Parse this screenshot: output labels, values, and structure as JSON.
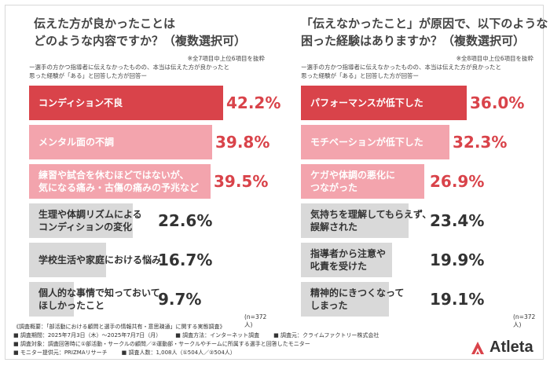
{
  "left": {
    "title_line1": "伝えた方が良かったことは",
    "title_line2": "どのような内容ですか？（複数選択可）",
    "note": "※全7項目中上位6項目を抜粋",
    "sub_line1": "ー選手の方かつ指導者に伝えなかったものの、本当は伝えた方が良かったと",
    "sub_line2": "思った経験が「ある」と回答した方が回答ー",
    "n_note": "(n=372人)",
    "highlight_color": "#d9434a",
    "accent_color": "#d9434a",
    "pale_color": "#f3a4ad",
    "gray_color": "#d9d9d9",
    "chart_data": {
      "type": "bar",
      "orientation": "horizontal",
      "unit": "%",
      "xlim": [
        0,
        100
      ],
      "categories": [
        [
          "コンディション不良"
        ],
        [
          "メンタル面の不調"
        ],
        [
          "練習や試合を休むほどではないが、",
          "気になる痛み・古傷の痛みの予兆など"
        ],
        [
          "生理や体調リズムによる",
          "コンディションの変化"
        ],
        [
          "学校生活や家庭における悩み"
        ],
        [
          "個人的な事情で知っておいて",
          "ほしかったこと"
        ]
      ],
      "values": [
        42.2,
        39.8,
        39.5,
        22.6,
        16.7,
        9.7
      ],
      "labels": [
        "42.2%",
        "39.8%",
        "39.5%",
        "22.6%",
        "16.7%",
        "9.7%"
      ]
    }
  },
  "right": {
    "title_line1": "「伝えなかったこと」が原因で、以下のような",
    "title_line2": "困った経験はありますか？（複数選択可）",
    "note": "※全8項目中上位6項目を抜粋",
    "sub_line1": "ー選手の方かつ指導者に伝えなかったものの、本当は伝えた方が良かったと",
    "sub_line2": "思った経験が「ある」と回答した方が回答ー",
    "n_note": "(n=372人)",
    "chart_data": {
      "type": "bar",
      "orientation": "horizontal",
      "unit": "%",
      "xlim": [
        0,
        100
      ],
      "categories": [
        [
          "パフォーマンスが低下した"
        ],
        [
          "モチベーションが低下した"
        ],
        [
          "ケガや体調の悪化に",
          "つながった"
        ],
        [
          "気持ちを理解してもらえず、",
          "誤解された"
        ],
        [
          "指導者から注意や",
          "叱責を受けた"
        ],
        [
          "精神的にきつくなって",
          "しまった"
        ]
      ],
      "values": [
        36.0,
        32.3,
        26.9,
        23.4,
        19.9,
        19.1
      ],
      "labels": [
        "36.0%",
        "32.3%",
        "26.9%",
        "23.4%",
        "19.9%",
        "19.1%"
      ]
    }
  },
  "footer": {
    "line1": "《調査概要：「部活動における顧問と選手の情報共有・意思疎通」に関する実態調査》",
    "line2a": "■ 調査期間：2025年7月3日（木）〜2025年7月7日（月）",
    "line2b": "■ 調査方法：インターネット調査",
    "line2c": "■ 調査元：クライムファクトリー株式会社",
    "line3": "■ 調査対象：調査回答時に①部活動・サークルの顧問／②運動部・サークルやチームに所属する選手と回答したモニター",
    "line4a": "■ モニター提供元：PRIZMAリサーチ",
    "line4b": "■ 調査人数：1,008人（①504人／②504人）"
  },
  "logo": {
    "text": "Atleta",
    "color": "#d9434a"
  }
}
